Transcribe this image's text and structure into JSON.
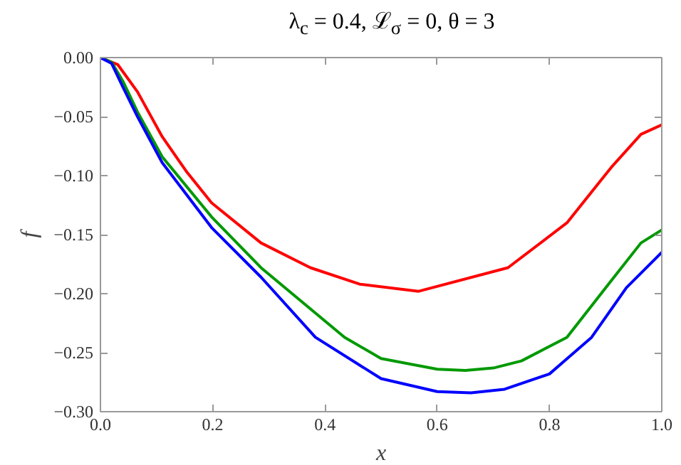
{
  "chart_data": {
    "type": "line",
    "title": "λ$_{c}$ = 0.4, ℒ$_{σ}$ = 0, θ = 3",
    "xlabel": "x",
    "ylabel": "f",
    "xlim": [
      0,
      1
    ],
    "ylim": [
      -0.3,
      0
    ],
    "xticks": [
      {
        "value": 0,
        "label": "0.0"
      },
      0.2,
      0.4,
      0.6,
      0.8,
      {
        "value": 1,
        "label": "1.0"
      }
    ],
    "yticks": [
      {
        "value": -0.3,
        "label": "−0.30"
      },
      {
        "value": -0.25,
        "label": "−0.25"
      },
      {
        "value": -0.2,
        "label": "−0.20"
      },
      {
        "value": -0.15,
        "label": "−0.15"
      },
      {
        "value": -0.1,
        "label": "−0.10"
      },
      {
        "value": -0.05,
        "label": "−0.05"
      },
      {
        "value": 0,
        "label": "0.00"
      }
    ],
    "grid": false,
    "series": [
      {
        "color": "#ff0000",
        "x": [
          0,
          0.031,
          0.066,
          0.11,
          0.154,
          0.198,
          0.286,
          0.374,
          0.462,
          0.567,
          0.726,
          0.831,
          0.91,
          0.963,
          1.0
        ],
        "values": [
          0,
          -0.006,
          -0.029,
          -0.067,
          -0.097,
          -0.123,
          -0.157,
          -0.178,
          -0.192,
          -0.198,
          -0.178,
          -0.14,
          -0.093,
          -0.065,
          -0.057
        ]
      },
      {
        "color": "#009900",
        "x": [
          0,
          0.02,
          0.04,
          0.066,
          0.11,
          0.198,
          0.286,
          0.435,
          0.5,
          0.6,
          0.65,
          0.7,
          0.75,
          0.831,
          0.91,
          0.963,
          1.0
        ],
        "values": [
          0,
          -0.004,
          -0.02,
          -0.046,
          -0.084,
          -0.135,
          -0.178,
          -0.237,
          -0.255,
          -0.264,
          -0.265,
          -0.263,
          -0.257,
          -0.237,
          -0.189,
          -0.157,
          -0.146
        ]
      },
      {
        "color": "#0000ff",
        "x": [
          0,
          0.02,
          0.04,
          0.066,
          0.11,
          0.198,
          0.286,
          0.383,
          0.5,
          0.6,
          0.66,
          0.72,
          0.8,
          0.875,
          0.937,
          1.0
        ],
        "values": [
          0,
          -0.005,
          -0.025,
          -0.05,
          -0.089,
          -0.144,
          -0.186,
          -0.237,
          -0.272,
          -0.283,
          -0.284,
          -0.281,
          -0.268,
          -0.237,
          -0.195,
          -0.165
        ]
      }
    ]
  }
}
